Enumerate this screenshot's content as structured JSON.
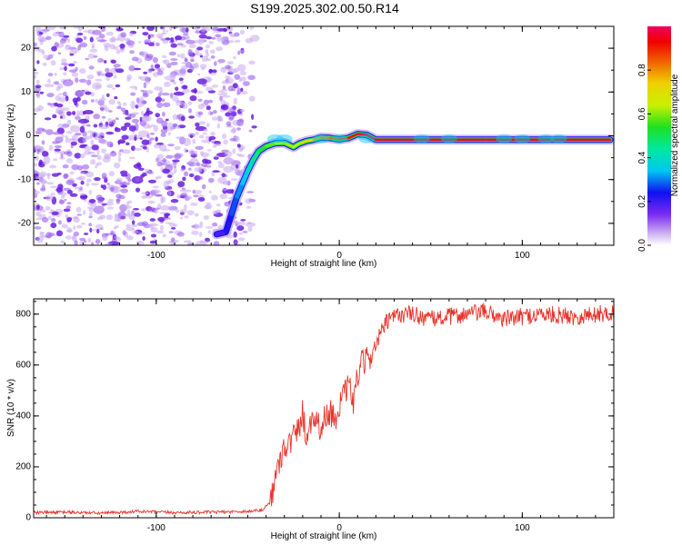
{
  "figure_title": "S199.2025.302.00.50.R14",
  "colors": {
    "line": "#e8342c",
    "spectrogram_noise": "#6a1fe0"
  },
  "chart_data": [
    {
      "type": "heatmap",
      "xlabel": "Height of straight line (km)",
      "ylabel": "Frequency (Hz)",
      "xlim": [
        -167,
        150
      ],
      "ylim": [
        -25,
        25
      ],
      "xticks": [
        "-100",
        "0",
        "100"
      ],
      "xtick_values": [
        -100,
        0,
        100
      ],
      "yticks": [
        "20",
        "10",
        "0",
        "-10",
        "-20"
      ],
      "ytick_values": [
        20,
        10,
        0,
        -10,
        -20
      ],
      "grid": false,
      "colorbar": {
        "label": "Normalized spectral amplitude",
        "range": [
          0,
          1
        ],
        "ticks": [
          "0.0",
          "0.2",
          "0.4",
          "0.6",
          "0.8"
        ],
        "tick_values": [
          0.0,
          0.2,
          0.4,
          0.6,
          0.8
        ]
      },
      "noise_region_x": [
        -167,
        -52
      ],
      "signal_trace": {
        "x": [
          -67,
          -62,
          -59,
          -56,
          -53,
          -50,
          -47,
          -44,
          -40,
          -35,
          -30,
          -25,
          -22,
          -18,
          -14,
          -10,
          -5,
          0,
          5,
          10,
          15,
          20,
          40,
          60,
          80,
          100,
          120,
          148
        ],
        "y": [
          -22.5,
          -22,
          -18,
          -14,
          -11,
          -8,
          -5.5,
          -3.5,
          -2.4,
          -1.7,
          -1.6,
          -2.6,
          -1.8,
          -1.2,
          -0.9,
          -0.4,
          -0.5,
          -0.8,
          -0.5,
          0.4,
          0.2,
          -0.9,
          -0.9,
          -0.9,
          -0.9,
          -0.9,
          -0.9,
          -0.9
        ],
        "amplitude": [
          0.18,
          0.2,
          0.25,
          0.3,
          0.32,
          0.38,
          0.42,
          0.5,
          0.55,
          0.62,
          0.66,
          0.6,
          0.68,
          0.72,
          0.75,
          0.78,
          0.82,
          0.84,
          0.88,
          0.95,
          0.98,
          0.97,
          0.97,
          0.97,
          0.97,
          0.98,
          0.97,
          0.96
        ]
      }
    },
    {
      "type": "line",
      "xlabel": "Height of straight line (km)",
      "ylabel": "SNR (10 * v/v)",
      "xlim": [
        -167,
        150
      ],
      "ylim": [
        0,
        860
      ],
      "xticks": [
        "-100",
        "0",
        "100"
      ],
      "xtick_values": [
        -100,
        0,
        100
      ],
      "yticks": [
        "800",
        "600",
        "400",
        "200",
        "0"
      ],
      "ytick_values": [
        800,
        600,
        400,
        200,
        0
      ],
      "grid": false,
      "series": [
        {
          "x": [
            -167,
            -150,
            -130,
            -110,
            -90,
            -70,
            -50,
            -42,
            -38,
            -35,
            -32,
            -30,
            -28,
            -25,
            -22,
            -20,
            -18,
            -15,
            -12,
            -10,
            -8,
            -5,
            -2,
            0,
            3,
            5,
            8,
            10,
            12,
            15,
            18,
            20,
            25,
            30,
            35,
            40,
            50,
            60,
            70,
            80,
            90,
            100,
            110,
            120,
            130,
            140,
            150
          ],
          "values": [
            20,
            22,
            18,
            25,
            20,
            22,
            25,
            30,
            60,
            150,
            240,
            290,
            280,
            320,
            350,
            420,
            310,
            400,
            380,
            350,
            390,
            420,
            380,
            450,
            480,
            520,
            450,
            560,
            600,
            620,
            650,
            680,
            760,
            790,
            800,
            800,
            780,
            790,
            800,
            810,
            780,
            790,
            800,
            795,
            790,
            800,
            805
          ]
        }
      ]
    }
  ]
}
